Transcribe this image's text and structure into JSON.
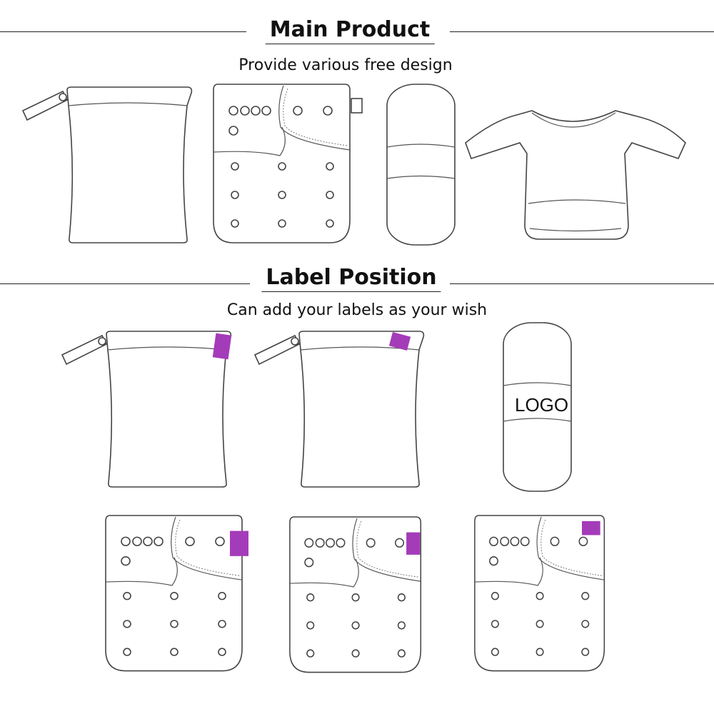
{
  "sections": {
    "main": {
      "title": "Main Product",
      "subtitle": "Provide various free design"
    },
    "label": {
      "title": "Label Position",
      "subtitle": "Can add your labels as your wish"
    }
  },
  "products": [
    "wet bag",
    "cloth diaper",
    "diaper insert",
    "long sleeve bib"
  ],
  "insert_logo_text": "LOGO",
  "colors": {
    "label": "#a43bb9",
    "line": "#444444"
  }
}
